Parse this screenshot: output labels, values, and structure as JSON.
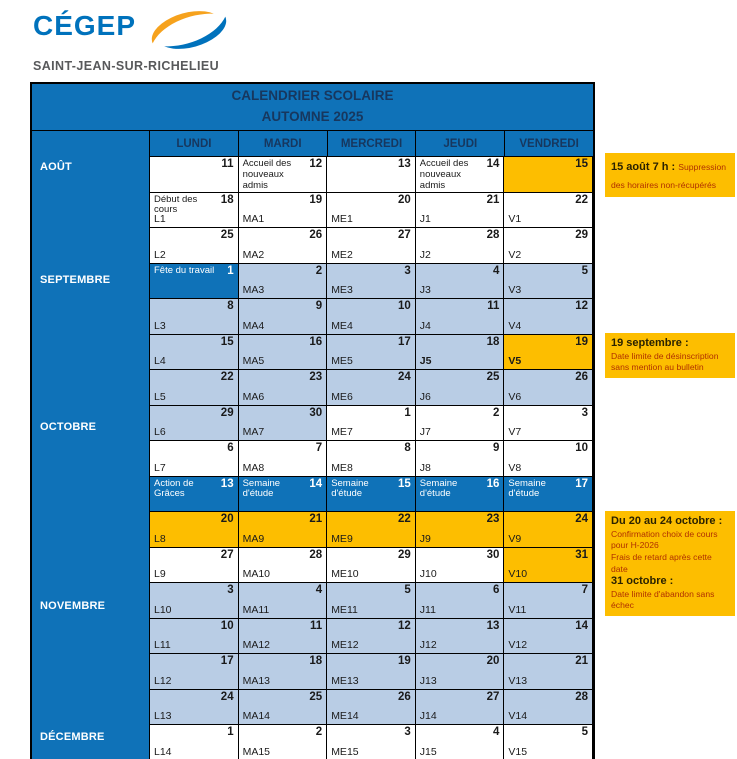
{
  "logo": {
    "brand": "CÉGEP",
    "subtitle": "SAINT-JEAN-SUR-RICHELIEU",
    "swoosh_icon": "cegep-swoosh-icon"
  },
  "colors": {
    "table_blue": "#0f72b8",
    "light_blue": "#b9cde5",
    "highlight_orange": "#fdbe00",
    "navy_heading_text": "#17375e",
    "note_red_text": "#b03000",
    "logo_blue": "#0072bc",
    "logo_orange": "#f6a21d",
    "logo_gray": "#58595b"
  },
  "table": {
    "title1": "CALENDRIER SCOLAIRE",
    "title2": "AUTOMNE 2025",
    "day_headers": [
      "LUNDI",
      "MARDI",
      "MERCREDI",
      "JEUDI",
      "VENDREDI"
    ],
    "months": [
      {
        "label": "AOÛT",
        "row": 0
      },
      {
        "label": "SEPTEMBRE",
        "row": 3
      },
      {
        "label": "OCTOBRE",
        "row": 7
      },
      {
        "label": "NOVEMBRE",
        "row": 12
      },
      {
        "label": "DÉCEMBRE",
        "row": 16
      }
    ],
    "rows": [
      {
        "cells": [
          {
            "date": "11",
            "bg": "white"
          },
          {
            "date": "12",
            "label": "Accueil des nouveaux admis",
            "bg": "white"
          },
          {
            "date": "13",
            "bg": "white"
          },
          {
            "date": "14",
            "label": "Accueil des nouveaux admis",
            "bg": "white"
          },
          {
            "date": "15",
            "bg": "orange"
          }
        ]
      },
      {
        "cells": [
          {
            "date": "18",
            "label": "Début des cours",
            "code": "L1",
            "bg": "white"
          },
          {
            "date": "19",
            "code": "MA1",
            "bg": "white"
          },
          {
            "date": "20",
            "code": "ME1",
            "bg": "white"
          },
          {
            "date": "21",
            "code": "J1",
            "bg": "white"
          },
          {
            "date": "22",
            "code": "V1",
            "bg": "white"
          }
        ]
      },
      {
        "cells": [
          {
            "date": "25",
            "code": "L2",
            "bg": "white"
          },
          {
            "date": "26",
            "code": "MA2",
            "bg": "white"
          },
          {
            "date": "27",
            "code": "ME2",
            "bg": "white"
          },
          {
            "date": "28",
            "code": "J2",
            "bg": "white"
          },
          {
            "date": "29",
            "code": "V2",
            "bg": "white"
          }
        ]
      },
      {
        "cells": [
          {
            "date": "1",
            "label": "Fête du travail",
            "bg": "blue"
          },
          {
            "date": "2",
            "code": "MA3",
            "bg": "light"
          },
          {
            "date": "3",
            "code": "ME3",
            "bg": "light"
          },
          {
            "date": "4",
            "code": "J3",
            "bg": "light"
          },
          {
            "date": "5",
            "code": "V3",
            "bg": "light"
          }
        ]
      },
      {
        "cells": [
          {
            "date": "8",
            "code": "L3",
            "bg": "light"
          },
          {
            "date": "9",
            "code": "MA4",
            "bg": "light"
          },
          {
            "date": "10",
            "code": "ME4",
            "bg": "light"
          },
          {
            "date": "11",
            "code": "J4",
            "bg": "light"
          },
          {
            "date": "12",
            "code": "V4",
            "bg": "light"
          }
        ]
      },
      {
        "cells": [
          {
            "date": "15",
            "code": "L4",
            "bg": "light"
          },
          {
            "date": "16",
            "code": "MA5",
            "bg": "light"
          },
          {
            "date": "17",
            "code": "ME5",
            "bg": "light"
          },
          {
            "date": "18",
            "code": "J5",
            "bg": "light",
            "bold_code": true
          },
          {
            "date": "19",
            "code": "V5",
            "bg": "orange",
            "bold_code": true
          }
        ]
      },
      {
        "cells": [
          {
            "date": "22",
            "code": "L5",
            "bg": "light"
          },
          {
            "date": "23",
            "code": "MA6",
            "bg": "light"
          },
          {
            "date": "24",
            "code": "ME6",
            "bg": "light"
          },
          {
            "date": "25",
            "code": "J6",
            "bg": "light"
          },
          {
            "date": "26",
            "code": "V6",
            "bg": "light"
          }
        ]
      },
      {
        "cells": [
          {
            "date": "29",
            "code": "L6",
            "bg": "light"
          },
          {
            "date": "30",
            "code": "MA7",
            "bg": "light"
          },
          {
            "date": "1",
            "code": "ME7",
            "bg": "white"
          },
          {
            "date": "2",
            "code": "J7",
            "bg": "white"
          },
          {
            "date": "3",
            "code": "V7",
            "bg": "white"
          }
        ]
      },
      {
        "cells": [
          {
            "date": "6",
            "code": "L7",
            "bg": "white"
          },
          {
            "date": "7",
            "code": "MA8",
            "bg": "white"
          },
          {
            "date": "8",
            "code": "ME8",
            "bg": "white"
          },
          {
            "date": "9",
            "code": "J8",
            "bg": "white"
          },
          {
            "date": "10",
            "code": "V8",
            "bg": "white"
          }
        ]
      },
      {
        "cells": [
          {
            "date": "13",
            "label": "Action de Grâces",
            "bg": "blue"
          },
          {
            "date": "14",
            "label": "Semaine d'étude",
            "bg": "blue"
          },
          {
            "date": "15",
            "label": "Semaine d'étude",
            "bg": "blue"
          },
          {
            "date": "16",
            "label": "Semaine d'étude",
            "bg": "blue"
          },
          {
            "date": "17",
            "label": "Semaine d'étude",
            "bg": "blue"
          }
        ]
      },
      {
        "cells": [
          {
            "date": "20",
            "code": "L8",
            "bg": "orange"
          },
          {
            "date": "21",
            "code": "MA9",
            "bg": "orange"
          },
          {
            "date": "22",
            "code": "ME9",
            "bg": "orange"
          },
          {
            "date": "23",
            "code": "J9",
            "bg": "orange"
          },
          {
            "date": "24",
            "code": "V9",
            "bg": "orange"
          }
        ]
      },
      {
        "cells": [
          {
            "date": "27",
            "code": "L9",
            "bg": "white"
          },
          {
            "date": "28",
            "code": "MA10",
            "bg": "white"
          },
          {
            "date": "29",
            "code": "ME10",
            "bg": "white"
          },
          {
            "date": "30",
            "code": "J10",
            "bg": "white"
          },
          {
            "date": "31",
            "code": "V10",
            "bg": "orange"
          }
        ]
      },
      {
        "cells": [
          {
            "date": "3",
            "code": "L10",
            "bg": "light"
          },
          {
            "date": "4",
            "code": "MA11",
            "bg": "light"
          },
          {
            "date": "5",
            "code": "ME11",
            "bg": "light"
          },
          {
            "date": "6",
            "code": "J11",
            "bg": "light"
          },
          {
            "date": "7",
            "code": "V11",
            "bg": "light"
          }
        ]
      },
      {
        "cells": [
          {
            "date": "10",
            "code": "L11",
            "bg": "light"
          },
          {
            "date": "11",
            "code": "MA12",
            "bg": "light"
          },
          {
            "date": "12",
            "code": "ME12",
            "bg": "light"
          },
          {
            "date": "13",
            "code": "J12",
            "bg": "light"
          },
          {
            "date": "14",
            "code": "V12",
            "bg": "light"
          }
        ]
      },
      {
        "cells": [
          {
            "date": "17",
            "code": "L12",
            "bg": "light"
          },
          {
            "date": "18",
            "code": "MA13",
            "bg": "light"
          },
          {
            "date": "19",
            "code": "ME13",
            "bg": "light"
          },
          {
            "date": "20",
            "code": "J13",
            "bg": "light"
          },
          {
            "date": "21",
            "code": "V13",
            "bg": "light"
          }
        ]
      },
      {
        "cells": [
          {
            "date": "24",
            "code": "L13",
            "bg": "light"
          },
          {
            "date": "25",
            "code": "MA14",
            "bg": "light"
          },
          {
            "date": "26",
            "code": "ME14",
            "bg": "light"
          },
          {
            "date": "27",
            "code": "J14",
            "bg": "light"
          },
          {
            "date": "28",
            "code": "V14",
            "bg": "light"
          }
        ]
      },
      {
        "cells": [
          {
            "date": "1",
            "code": "L14",
            "bg": "white"
          },
          {
            "date": "2",
            "code": "MA15",
            "bg": "white"
          },
          {
            "date": "3",
            "code": "ME15",
            "bg": "white"
          },
          {
            "date": "4",
            "code": "J15",
            "bg": "white"
          },
          {
            "date": "5",
            "code": "V15",
            "bg": "white"
          }
        ]
      }
    ]
  },
  "notes": [
    {
      "segments": [
        {
          "text": "15 août 7 h : ",
          "style": "heading",
          "inline": true
        },
        {
          "text": "Suppression des horaires non-récupérés",
          "style": "body",
          "inline": true
        }
      ]
    },
    {
      "segments": [
        {
          "text": "19 septembre :",
          "style": "heading"
        },
        {
          "text": "Date limite de désinscription sans mention au bulletin",
          "style": "body"
        }
      ]
    },
    {
      "segments": [
        {
          "text": "Du 20 au 24 octobre :",
          "style": "heading"
        },
        {
          "text": "Confirmation choix de cours pour H-2026",
          "style": "body"
        },
        {
          "text": "Frais de retard après cette date",
          "style": "body"
        },
        {
          "text": "31 octobre :",
          "style": "heading"
        },
        {
          "text": "Date limite d'abandon sans échec",
          "style": "body"
        }
      ]
    }
  ]
}
